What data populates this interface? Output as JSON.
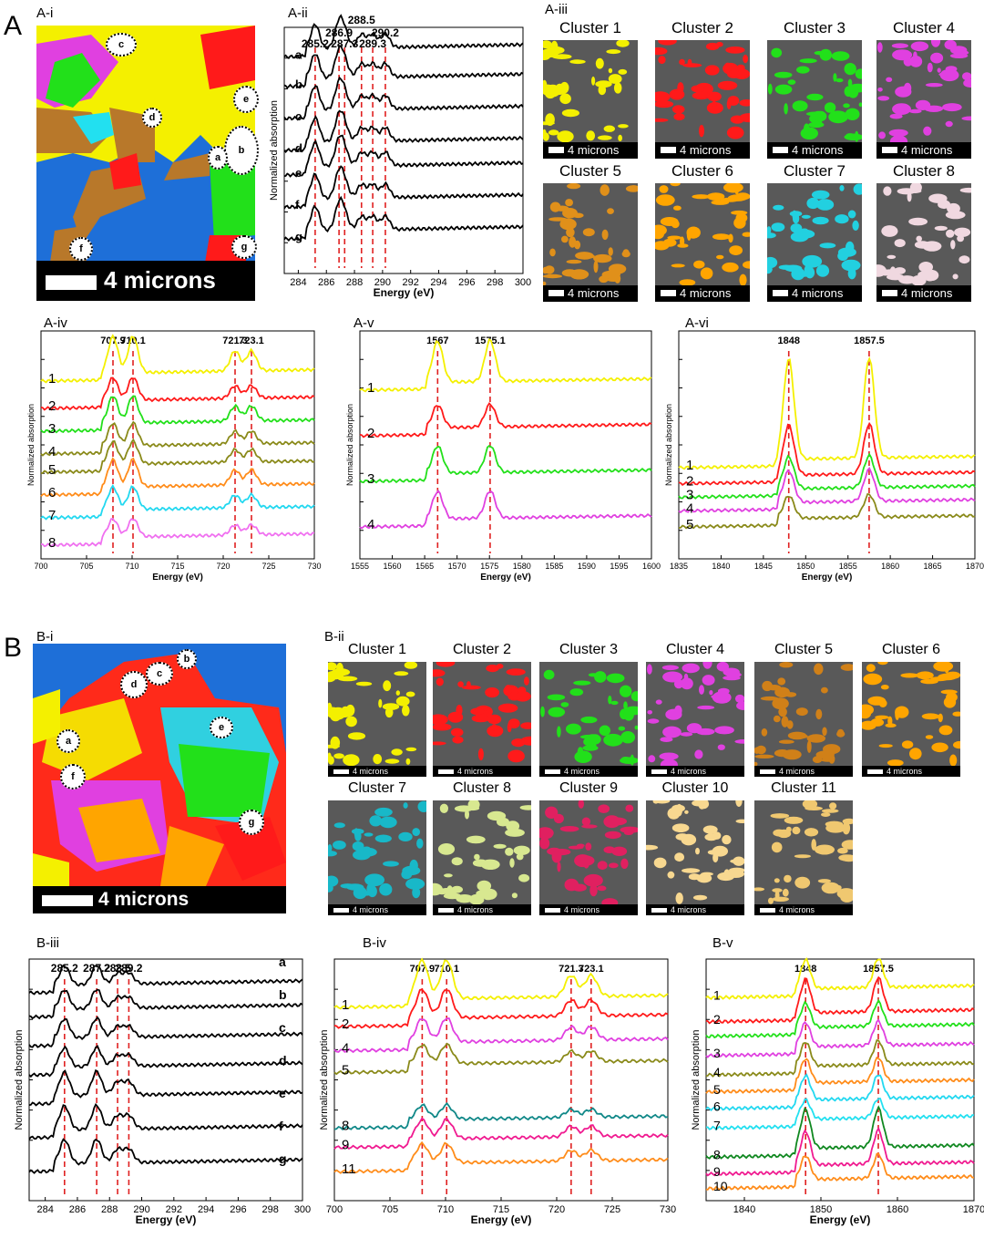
{
  "panels": {
    "A": "A",
    "B": "B",
    "Ai": "A-i",
    "Aii": "A-ii",
    "Aiii": "A-iii",
    "Aiv": "A-iv",
    "Av": "A-v",
    "Avi": "A-vi",
    "Bi": "B-i",
    "Bii": "B-ii",
    "Biii": "B-iii",
    "Biv": "B-iv",
    "Bv": "B-v"
  },
  "maps": {
    "A": {
      "scalebar": "4 microns",
      "spots": [
        "c",
        "e",
        "d",
        "b",
        "a",
        "f",
        "g"
      ]
    },
    "B": {
      "scalebar": "4 microns",
      "spots": [
        "b",
        "c",
        "d",
        "e",
        "a",
        "f",
        "g"
      ]
    }
  },
  "clusters_A": {
    "scalebar": "4 microns",
    "items": [
      {
        "title": "Cluster 1",
        "color": "#f4f000"
      },
      {
        "title": "Cluster 2",
        "color": "#ff1a1a"
      },
      {
        "title": "Cluster 3",
        "color": "#22e01a"
      },
      {
        "title": "Cluster 4",
        "color": "#e040e0"
      },
      {
        "title": "Cluster 5",
        "color": "#e0901a"
      },
      {
        "title": "Cluster 6",
        "color": "#ffa500"
      },
      {
        "title": "Cluster 7",
        "color": "#22d0e0"
      },
      {
        "title": "Cluster 8",
        "color": "#f0d8e0"
      }
    ]
  },
  "clusters_B": {
    "scalebar": "4 microns",
    "items": [
      {
        "title": "Cluster 1",
        "color": "#f4f000"
      },
      {
        "title": "Cluster 2",
        "color": "#ff1a1a"
      },
      {
        "title": "Cluster 3",
        "color": "#22e01a"
      },
      {
        "title": "Cluster 4",
        "color": "#e040e0"
      },
      {
        "title": "Cluster 5",
        "color": "#d08018"
      },
      {
        "title": "Cluster 6",
        "color": "#ffa500"
      },
      {
        "title": "Cluster 7",
        "color": "#18b8c8"
      },
      {
        "title": "Cluster 8",
        "color": "#d8e890"
      },
      {
        "title": "Cluster 9",
        "color": "#e02060"
      },
      {
        "title": "Cluster 10",
        "color": "#f8d890"
      },
      {
        "title": "Cluster 11",
        "color": "#f0c870"
      }
    ]
  },
  "chart_data": [
    {
      "id": "Aii",
      "type": "line",
      "xlabel": "Energy (eV)",
      "ylabel": "Normalized absorption",
      "xlim": [
        283,
        300
      ],
      "xticks": [
        284,
        286,
        288,
        290,
        292,
        294,
        296,
        298,
        300
      ],
      "peaks": [
        285.2,
        286.9,
        287.3,
        288.5,
        289.3,
        290.2
      ],
      "peak_labels": [
        "285.2",
        "286.9",
        "287.3",
        "288.5",
        "289.3",
        "290.2"
      ],
      "series": [
        {
          "name": "a",
          "color": "#000000",
          "base": 0.88,
          "amp": 0.1
        },
        {
          "name": "b",
          "color": "#000000",
          "base": 0.76,
          "amp": 0.1
        },
        {
          "name": "c",
          "color": "#000000",
          "base": 0.63,
          "amp": 0.1
        },
        {
          "name": "d",
          "color": "#000000",
          "base": 0.5,
          "amp": 0.1
        },
        {
          "name": "e",
          "color": "#000000",
          "base": 0.4,
          "amp": 0.1
        },
        {
          "name": "f",
          "color": "#000000",
          "base": 0.27,
          "amp": 0.1
        },
        {
          "name": "g",
          "color": "#000000",
          "base": 0.14,
          "amp": 0.1
        }
      ]
    },
    {
      "id": "Aiv",
      "type": "line",
      "xlabel": "Energy (eV)",
      "ylabel": "Normalized absorption",
      "xlim": [
        700,
        730
      ],
      "xticks": [
        700,
        705,
        710,
        715,
        720,
        725,
        730
      ],
      "peaks": [
        707.9,
        710.1,
        721.3,
        723.1
      ],
      "peak_labels": [
        "707.9",
        "710.1",
        "721.3",
        "723.1"
      ],
      "series": [
        {
          "name": "1",
          "color": "#f4f000",
          "base": 0.78,
          "amp": 0.16
        },
        {
          "name": "2",
          "color": "#ff1a1a",
          "base": 0.66,
          "amp": 0.1
        },
        {
          "name": "3",
          "color": "#22e01a",
          "base": 0.56,
          "amp": 0.12
        },
        {
          "name": "4",
          "color": "#8a8a1a",
          "base": 0.46,
          "amp": 0.1
        },
        {
          "name": "5",
          "color": "#8a8a1a",
          "base": 0.38,
          "amp": 0.1
        },
        {
          "name": "6",
          "color": "#ff8c1a",
          "base": 0.28,
          "amp": 0.12
        },
        {
          "name": "7",
          "color": "#22d8f0",
          "base": 0.18,
          "amp": 0.1
        },
        {
          "name": "8",
          "color": "#f070f0",
          "base": 0.06,
          "amp": 0.08
        }
      ]
    },
    {
      "id": "Av",
      "type": "line",
      "xlabel": "Energy (eV)",
      "ylabel": "Normalized absorption",
      "xlim": [
        1555,
        1600
      ],
      "xticks": [
        1555,
        1560,
        1565,
        1570,
        1575,
        1580,
        1585,
        1590,
        1595,
        1600
      ],
      "peaks": [
        1567,
        1575.1
      ],
      "peak_labels": [
        "1567",
        "1575.1"
      ],
      "series": [
        {
          "name": "1",
          "color": "#f4f000",
          "base": 0.74,
          "amp": 0.18
        },
        {
          "name": "2",
          "color": "#ff1a1a",
          "base": 0.54,
          "amp": 0.1
        },
        {
          "name": "3",
          "color": "#22e01a",
          "base": 0.34,
          "amp": 0.12
        },
        {
          "name": "4",
          "color": "#e040e0",
          "base": 0.14,
          "amp": 0.12
        }
      ]
    },
    {
      "id": "Avi",
      "type": "line",
      "xlabel": "Energy (eV)",
      "ylabel": "Normalized absorption",
      "xlim": [
        1835,
        1870
      ],
      "xticks": [
        1835,
        1840,
        1845,
        1850,
        1855,
        1860,
        1865,
        1870
      ],
      "peaks": [
        1848,
        1857.5
      ],
      "peak_labels": [
        "1848",
        "1857.5"
      ],
      "series": [
        {
          "name": "1",
          "color": "#f4f000",
          "base": 0.4,
          "amp": 0.44
        },
        {
          "name": "2",
          "color": "#ff1a1a",
          "base": 0.33,
          "amp": 0.22
        },
        {
          "name": "3",
          "color": "#22e01a",
          "base": 0.27,
          "amp": 0.14
        },
        {
          "name": "4",
          "color": "#e040e0",
          "base": 0.21,
          "amp": 0.14
        },
        {
          "name": "5",
          "color": "#8a8a1a",
          "base": 0.14,
          "amp": 0.1
        }
      ]
    },
    {
      "id": "Biii",
      "type": "line",
      "xlabel": "Energy (eV)",
      "ylabel": "Normalized absorption",
      "xlim": [
        283,
        300
      ],
      "xticks": [
        284,
        286,
        288,
        290,
        292,
        294,
        296,
        298,
        300
      ],
      "peaks": [
        285.2,
        287.2,
        288.5,
        289.2
      ],
      "peak_labels": [
        "285.2",
        "287.2",
        "288.5",
        "289.2"
      ],
      "series": [
        {
          "name": "a",
          "color": "#000000",
          "base": 0.86,
          "amp": 0.08
        },
        {
          "name": "b",
          "color": "#000000",
          "base": 0.76,
          "amp": 0.08
        },
        {
          "name": "c",
          "color": "#000000",
          "base": 0.64,
          "amp": 0.08
        },
        {
          "name": "d",
          "color": "#000000",
          "base": 0.52,
          "amp": 0.08
        },
        {
          "name": "e",
          "color": "#000000",
          "base": 0.4,
          "amp": 0.1
        },
        {
          "name": "f",
          "color": "#000000",
          "base": 0.26,
          "amp": 0.1
        },
        {
          "name": "g",
          "color": "#000000",
          "base": 0.12,
          "amp": 0.1
        }
      ]
    },
    {
      "id": "Biv",
      "type": "line",
      "xlabel": "Energy (eV)",
      "ylabel": "Normalized absorption",
      "xlim": [
        700,
        730
      ],
      "xticks": [
        700,
        705,
        710,
        715,
        720,
        725,
        730
      ],
      "peaks": [
        707.9,
        710.1,
        721.3,
        723.1
      ],
      "peak_labels": [
        "707.9",
        "710.1",
        "721.3",
        "723.1"
      ],
      "series": [
        {
          "name": "1",
          "color": "#f4f000",
          "base": 0.8,
          "amp": 0.16
        },
        {
          "name": "2",
          "color": "#ff1a1a",
          "base": 0.72,
          "amp": 0.12
        },
        {
          "name": "4",
          "color": "#e040e0",
          "base": 0.62,
          "amp": 0.1
        },
        {
          "name": "5",
          "color": "#8a8a1a",
          "base": 0.53,
          "amp": 0.08
        },
        {
          "name": "8",
          "color": "#108888",
          "base": 0.3,
          "amp": 0.06
        },
        {
          "name": "9",
          "color": "#f01a90",
          "base": 0.22,
          "amp": 0.08
        },
        {
          "name": "11",
          "color": "#ff8c1a",
          "base": 0.12,
          "amp": 0.08
        }
      ]
    },
    {
      "id": "Bv",
      "type": "line",
      "xlabel": "Energy (eV)",
      "ylabel": "Normalized absorption",
      "xlim": [
        1835,
        1870
      ],
      "xticks": [
        1840,
        1850,
        1860,
        1870
      ],
      "peaks": [
        1848,
        1857.5
      ],
      "peak_labels": [
        "1848",
        "1857.5"
      ],
      "series": [
        {
          "name": "1",
          "color": "#f4f000",
          "base": 0.84,
          "amp": 0.12
        },
        {
          "name": "2",
          "color": "#ff1a1a",
          "base": 0.74,
          "amp": 0.14
        },
        {
          "name": "",
          "color": "#22e01a",
          "base": 0.68,
          "amp": 0.1
        },
        {
          "name": "3",
          "color": "#e040e0",
          "base": 0.6,
          "amp": 0.1
        },
        {
          "name": "4",
          "color": "#8a8a1a",
          "base": 0.52,
          "amp": 0.1
        },
        {
          "name": "5",
          "color": "#ff8c1a",
          "base": 0.45,
          "amp": 0.1
        },
        {
          "name": "6",
          "color": "#22d8f0",
          "base": 0.38,
          "amp": 0.1
        },
        {
          "name": "7",
          "color": "#22e0f0",
          "base": 0.3,
          "amp": 0.08
        },
        {
          "name": "8",
          "color": "#108820",
          "base": 0.18,
          "amp": 0.16
        },
        {
          "name": "9",
          "color": "#f01a90",
          "base": 0.11,
          "amp": 0.14
        },
        {
          "name": "10",
          "color": "#ff8c1a",
          "base": 0.05,
          "amp": 0.1
        }
      ]
    }
  ]
}
